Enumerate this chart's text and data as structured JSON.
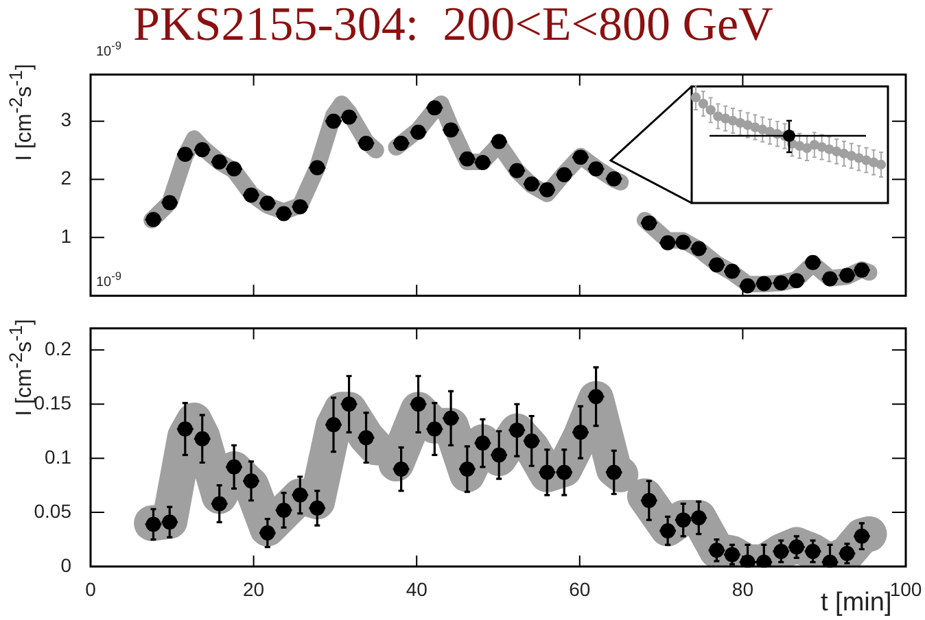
{
  "chart_data": [
    {
      "type": "scatter",
      "title": "PKS2155-304:  200<E<800 GeV",
      "ylabel": "I [cm$^{-2}$s$^{-1}$]",
      "annotations": [
        "10$^{-9}$",
        "10$^{-9}$"
      ],
      "xlim": [
        0,
        100
      ],
      "xticks": [
        0,
        20,
        40,
        60,
        80,
        100
      ],
      "ylim": [
        0,
        3.8
      ],
      "yticks": [
        1,
        2,
        3
      ],
      "tick_labels": "y",
      "x": [
        7.7,
        9.7,
        11.6,
        13.7,
        15.8,
        17.6,
        19.7,
        21.7,
        23.7,
        25.7,
        27.8,
        29.8,
        31.7,
        33.8,
        38.1,
        40.2,
        42.2,
        44.2,
        46.2,
        48.1,
        50.1,
        52.3,
        54.1,
        56.0,
        58.1,
        60.1,
        62.0,
        64.2,
        68.5,
        70.8,
        72.7,
        74.6,
        76.8,
        78.7,
        80.6,
        82.6,
        84.7,
        86.6,
        88.6,
        90.7,
        92.8,
        94.6
      ],
      "series": [
        {
          "type": "line",
          "color": "#a0a0a0",
          "x": [
            7.5,
            9.7,
            11.6,
            12.7,
            13.7,
            15.8,
            17.6,
            19.7,
            21.7,
            23.7,
            25.7,
            27.8,
            29.8,
            30.8,
            31.7,
            33.8,
            35.0,
            36.5,
            37.5,
            40.2,
            42.2,
            43.0,
            44.2,
            46.2,
            48.1,
            50.1,
            52.3,
            54.1,
            56.0,
            58.1,
            60.1,
            62.0,
            64.2,
            65.0,
            66.5,
            68.0,
            70.8,
            72.7,
            74.6,
            76.8,
            78.7,
            80.6,
            82.6,
            84.7,
            86.6,
            88.6,
            90.7,
            92.8,
            94.6,
            95.5
          ],
          "values": [
            1.3,
            1.6,
            2.4,
            2.7,
            2.55,
            2.3,
            2.15,
            1.75,
            1.55,
            1.45,
            1.55,
            2.2,
            3.1,
            3.3,
            3.15,
            2.65,
            2.5,
            null,
            2.55,
            2.85,
            3.2,
            3.3,
            2.9,
            2.3,
            2.3,
            2.6,
            2.15,
            1.9,
            1.75,
            2.1,
            2.4,
            2.2,
            2.0,
            1.95,
            null,
            1.3,
            0.95,
            0.95,
            0.8,
            0.55,
            0.4,
            0.2,
            0.2,
            0.22,
            0.28,
            0.55,
            0.3,
            0.33,
            0.45,
            0.4
          ]
        },
        {
          "color": "#000000",
          "marker": "circle",
          "values": [
            1.31,
            1.6,
            2.43,
            2.51,
            2.3,
            2.18,
            1.73,
            1.59,
            1.41,
            1.53,
            2.2,
            3.0,
            3.07,
            2.62,
            2.62,
            2.81,
            3.23,
            2.85,
            2.35,
            2.29,
            2.65,
            2.15,
            1.92,
            1.82,
            2.08,
            2.38,
            2.18,
            2.01,
            1.25,
            0.91,
            0.92,
            0.81,
            0.53,
            0.42,
            0.17,
            0.21,
            0.22,
            0.26,
            0.57,
            0.29,
            0.35,
            0.44
          ],
          "errors": [
            0.1,
            0.1,
            0.1,
            0.1,
            0.1,
            0.1,
            0.1,
            0.1,
            0.1,
            0.1,
            0.1,
            0.1,
            0.1,
            0.1,
            0.1,
            0.1,
            0.1,
            0.1,
            0.1,
            0.1,
            0.1,
            0.1,
            0.1,
            0.1,
            0.1,
            0.1,
            0.1,
            0.1,
            0.1,
            0.1,
            0.1,
            0.1,
            0.1,
            0.1,
            0.1,
            0.1,
            0.1,
            0.1,
            0.1,
            0.1,
            0.1,
            0.1
          ],
          "xerrors": [
            1,
            1,
            1,
            1,
            1,
            1,
            1,
            1,
            1,
            1,
            1,
            1,
            1,
            1,
            1,
            1,
            1,
            1,
            1,
            1,
            1,
            1,
            1,
            1,
            1,
            1,
            1,
            1,
            1,
            1,
            1,
            1,
            1,
            1,
            1,
            1,
            1,
            1,
            1,
            1,
            1,
            1
          ]
        }
      ]
    },
    {
      "type": "scatter",
      "xlabel": "t [min]",
      "ylabel": "I [cm$^{-2}$s$^{-1}$]",
      "xlim": [
        0,
        100
      ],
      "xticks": [
        0,
        20,
        40,
        60,
        80,
        100
      ],
      "ylim": [
        0,
        0.22
      ],
      "yticks": [
        0,
        0.05,
        0.1,
        0.15,
        0.2
      ],
      "x": [
        7.7,
        9.7,
        11.6,
        13.7,
        15.8,
        17.6,
        19.7,
        21.7,
        23.7,
        25.7,
        27.8,
        29.8,
        31.7,
        33.8,
        38.1,
        40.2,
        42.2,
        44.2,
        46.2,
        48.1,
        50.1,
        52.3,
        54.1,
        56.0,
        58.1,
        60.1,
        62.0,
        64.2,
        68.5,
        70.8,
        72.7,
        74.6,
        76.8,
        78.7,
        80.6,
        82.6,
        84.7,
        86.6,
        88.6,
        90.7,
        92.8,
        94.6
      ],
      "series": [
        {
          "type": "line",
          "color": "#a0a0a0",
          "x": [
            7.5,
            9.7,
            11.6,
            12.7,
            13.7,
            15.8,
            17.6,
            19.7,
            21.7,
            23.7,
            25.7,
            27.8,
            29.8,
            30.8,
            31.7,
            33.8,
            35.0,
            36.5,
            37.5,
            40.2,
            42.2,
            43.0,
            44.2,
            46.2,
            48.1,
            50.1,
            52.3,
            54.1,
            56.0,
            58.1,
            60.1,
            62.0,
            64.2,
            65.0,
            66.5,
            68.0,
            70.8,
            72.7,
            74.6,
            76.8,
            78.7,
            80.6,
            82.6,
            84.7,
            86.6,
            88.6,
            90.7,
            92.8,
            94.6,
            95.5
          ],
          "values": [
            0.04,
            0.042,
            0.12,
            0.135,
            0.12,
            0.065,
            0.09,
            0.075,
            0.035,
            0.05,
            0.065,
            0.06,
            0.13,
            0.145,
            0.145,
            0.12,
            0.11,
            null,
            0.095,
            0.145,
            0.13,
            0.13,
            0.13,
            0.085,
            0.115,
            0.1,
            0.125,
            0.11,
            0.085,
            0.09,
            0.12,
            0.155,
            0.09,
            0.085,
            null,
            0.065,
            0.035,
            0.045,
            0.045,
            0.015,
            0.012,
            0.004,
            0.004,
            0.014,
            0.02,
            0.014,
            0.004,
            0.012,
            0.028,
            0.03
          ]
        },
        {
          "color": "#000000",
          "marker": "circle",
          "values": [
            0.039,
            0.041,
            0.127,
            0.118,
            0.058,
            0.092,
            0.079,
            0.031,
            0.052,
            0.066,
            0.054,
            0.131,
            0.15,
            0.119,
            0.09,
            0.15,
            0.127,
            0.137,
            0.09,
            0.114,
            0.103,
            0.126,
            0.116,
            0.087,
            0.087,
            0.124,
            0.157,
            0.087,
            0.061,
            0.033,
            0.043,
            0.045,
            0.015,
            0.011,
            0.004,
            0.004,
            0.014,
            0.018,
            0.014,
            0.004,
            0.012,
            0.028
          ],
          "errors": [
            0.014,
            0.014,
            0.024,
            0.022,
            0.017,
            0.02,
            0.018,
            0.013,
            0.016,
            0.017,
            0.016,
            0.025,
            0.026,
            0.023,
            0.02,
            0.026,
            0.024,
            0.025,
            0.021,
            0.022,
            0.022,
            0.024,
            0.023,
            0.021,
            0.021,
            0.024,
            0.027,
            0.02,
            0.018,
            0.013,
            0.015,
            0.015,
            0.01,
            0.009,
            [
              0,
              0.02
            ],
            [
              0,
              0.02
            ],
            0.01,
            0.01,
            0.01,
            [
              0,
              0.02
            ],
            0.009,
            0.012
          ],
          "xerrors": [
            1,
            1,
            1,
            1,
            1,
            1,
            1,
            1,
            1,
            1,
            1,
            1,
            1,
            1,
            1,
            1,
            1,
            1,
            1,
            1,
            1,
            1,
            1,
            1,
            1,
            1,
            1,
            1,
            1,
            1,
            1,
            1,
            1,
            1,
            1,
            1,
            1,
            1,
            1,
            1,
            1,
            1
          ]
        }
      ]
    }
  ]
}
